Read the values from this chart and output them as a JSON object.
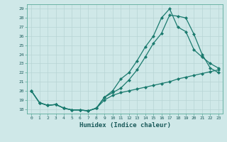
{
  "xlabel": "Humidex (Indice chaleur)",
  "xlim": [
    -0.5,
    23.5
  ],
  "ylim": [
    17.5,
    29.5
  ],
  "yticks": [
    18,
    19,
    20,
    21,
    22,
    23,
    24,
    25,
    26,
    27,
    28,
    29
  ],
  "xticks": [
    0,
    1,
    2,
    3,
    4,
    5,
    6,
    7,
    8,
    9,
    10,
    11,
    12,
    13,
    14,
    15,
    16,
    17,
    18,
    19,
    20,
    21,
    22,
    23
  ],
  "background_color": "#cfe8e8",
  "grid_color": "#b8d4d4",
  "line_color": "#1a7a6e",
  "line1_x": [
    0,
    1,
    2,
    3,
    4,
    5,
    6,
    7,
    8,
    9,
    10,
    11,
    12,
    13,
    14,
    15,
    16,
    17,
    18,
    19,
    20,
    21,
    22,
    23
  ],
  "line1_y": [
    20.0,
    18.7,
    18.4,
    18.5,
    18.1,
    17.9,
    17.9,
    17.8,
    18.1,
    19.3,
    20.0,
    21.3,
    22.0,
    23.3,
    24.8,
    26.0,
    28.0,
    29.0,
    27.0,
    26.5,
    24.5,
    23.7,
    23.0,
    22.5
  ],
  "line2_x": [
    0,
    1,
    2,
    3,
    4,
    5,
    6,
    7,
    8,
    9,
    10,
    11,
    12,
    13,
    14,
    15,
    16,
    17,
    18,
    19,
    20,
    21,
    22,
    23
  ],
  "line2_y": [
    20.0,
    18.7,
    18.4,
    18.5,
    18.1,
    17.9,
    17.9,
    17.8,
    18.1,
    19.3,
    19.8,
    20.3,
    21.2,
    22.3,
    23.7,
    25.2,
    26.3,
    28.3,
    28.2,
    28.0,
    26.2,
    24.0,
    22.5,
    22.0
  ],
  "line3_x": [
    0,
    1,
    2,
    3,
    4,
    5,
    6,
    7,
    8,
    9,
    10,
    11,
    12,
    13,
    14,
    15,
    16,
    17,
    18,
    19,
    20,
    21,
    22,
    23
  ],
  "line3_y": [
    20.0,
    18.7,
    18.4,
    18.5,
    18.1,
    17.9,
    17.9,
    17.8,
    18.1,
    19.0,
    19.5,
    19.8,
    20.0,
    20.2,
    20.4,
    20.6,
    20.8,
    21.0,
    21.3,
    21.5,
    21.7,
    21.9,
    22.1,
    22.3
  ]
}
